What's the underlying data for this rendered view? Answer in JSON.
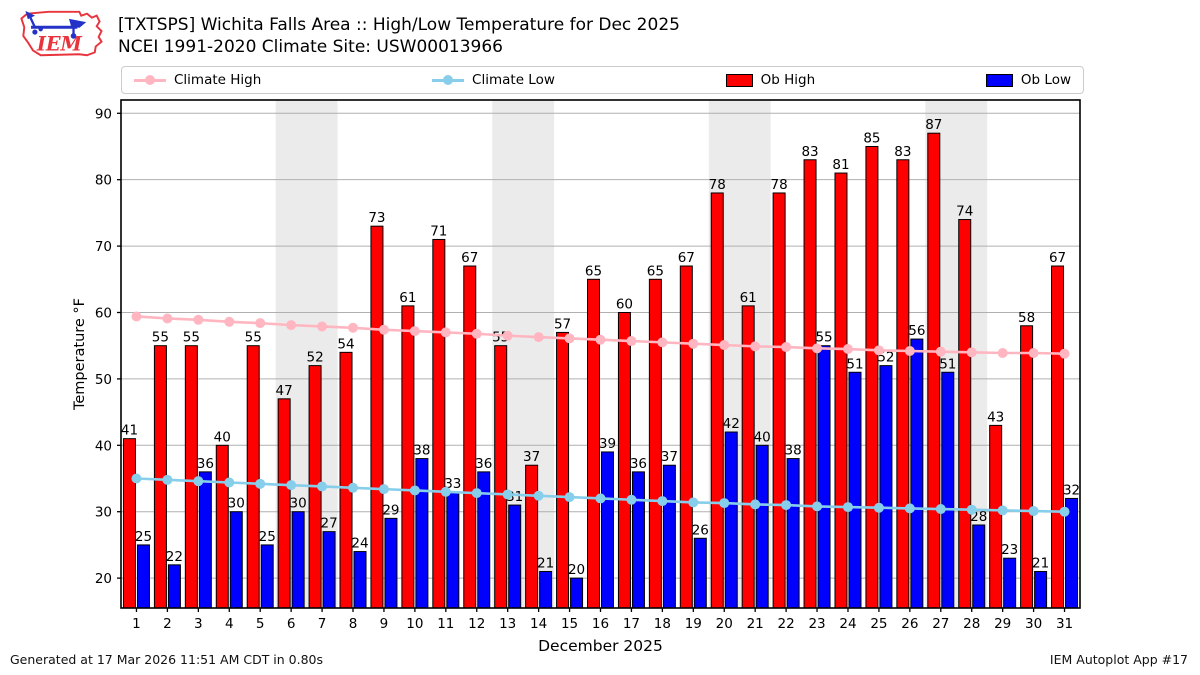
{
  "header": {
    "title": "[TXTSPS] Wichita Falls Area :: High/Low Temperature for Dec 2025",
    "subtitle": "NCEI 1991-2020 Climate Site: USW00013966",
    "logo_text": "IEM"
  },
  "legend": {
    "items": [
      {
        "label": "Climate High",
        "type": "line",
        "color": "#ffb6c1"
      },
      {
        "label": "Climate Low",
        "type": "line",
        "color": "#87ceeb"
      },
      {
        "label": "Ob High",
        "type": "patch",
        "color": "#ff0000"
      },
      {
        "label": "Ob Low",
        "type": "patch",
        "color": "#0000ff"
      }
    ]
  },
  "chart_data": {
    "type": "bar",
    "title": "[TXTSPS] Wichita Falls Area :: High/Low Temperature for Dec 2025",
    "subtitle": "NCEI 1991-2020 Climate Site: USW00013966",
    "xlabel": "December 2025",
    "ylabel": "Temperature °F",
    "x": [
      1,
      2,
      3,
      4,
      5,
      6,
      7,
      8,
      9,
      10,
      11,
      12,
      13,
      14,
      15,
      16,
      17,
      18,
      19,
      20,
      21,
      22,
      23,
      24,
      25,
      26,
      27,
      28,
      29,
      30,
      31
    ],
    "series": [
      {
        "name": "Ob High",
        "type": "bar",
        "color": "#ff0000",
        "values": [
          41,
          55,
          55,
          40,
          55,
          47,
          52,
          54,
          73,
          61,
          71,
          67,
          55,
          37,
          57,
          65,
          60,
          65,
          67,
          78,
          61,
          78,
          83,
          81,
          85,
          83,
          87,
          74,
          43,
          58,
          67
        ]
      },
      {
        "name": "Ob Low",
        "type": "bar",
        "color": "#0000ff",
        "values": [
          25,
          22,
          36,
          30,
          25,
          30,
          27,
          24,
          29,
          38,
          33,
          36,
          31,
          21,
          20,
          39,
          36,
          37,
          26,
          42,
          40,
          38,
          55,
          51,
          52,
          56,
          51,
          28,
          23,
          21,
          32
        ]
      },
      {
        "name": "Climate High",
        "type": "line",
        "color": "#ffb6c1",
        "values": [
          59.4,
          59.1,
          58.9,
          58.6,
          58.4,
          58.1,
          57.9,
          57.7,
          57.4,
          57.2,
          57.0,
          56.8,
          56.5,
          56.3,
          56.1,
          55.9,
          55.7,
          55.5,
          55.3,
          55.1,
          54.9,
          54.8,
          54.6,
          54.5,
          54.3,
          54.2,
          54.1,
          54.0,
          53.9,
          53.9,
          53.8
        ]
      },
      {
        "name": "Climate Low",
        "type": "line",
        "color": "#87ceeb",
        "values": [
          35.0,
          34.8,
          34.6,
          34.4,
          34.2,
          34.0,
          33.8,
          33.6,
          33.4,
          33.2,
          33.0,
          32.8,
          32.6,
          32.4,
          32.2,
          32.0,
          31.8,
          31.6,
          31.4,
          31.3,
          31.1,
          31.0,
          30.8,
          30.7,
          30.6,
          30.5,
          30.4,
          30.3,
          30.2,
          30.1,
          30.0
        ]
      }
    ],
    "ylim": [
      15.5,
      92
    ],
    "yticks": [
      20,
      30,
      40,
      50,
      60,
      70,
      80,
      90
    ],
    "weekend_bands": [
      [
        6,
        7
      ],
      [
        13,
        14
      ],
      [
        20,
        21
      ],
      [
        27,
        28
      ]
    ],
    "band_color": "#ebebeb",
    "grid_color": "#b0b0b0",
    "grid": true,
    "legend_position": "top"
  },
  "footer": {
    "left": "Generated at 17 Mar 2026 11:51 AM CDT in 0.80s",
    "right": "IEM Autoplot App #17"
  }
}
